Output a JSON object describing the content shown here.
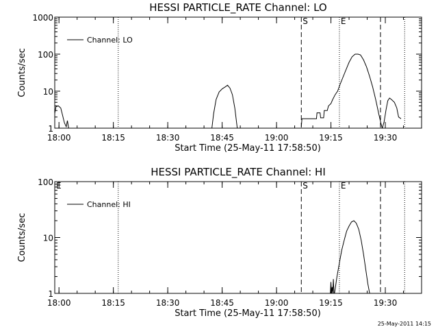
{
  "footer_timestamp": "25-May-2011 14:15",
  "chart_data": [
    {
      "type": "line",
      "title": "HESSI PARTICLE_RATE Channel: LO",
      "xlabel": "Start Time (25-May-11 17:58:50)",
      "ylabel": "Counts/sec",
      "y_scale": "log",
      "ylim": [
        1,
        1000
      ],
      "xlim": [
        "17:58:50",
        "19:40:00"
      ],
      "x_ticks": [
        "18:00",
        "18:15",
        "18:30",
        "18:45",
        "19:00",
        "19:15",
        "19:30"
      ],
      "y_ticks": [
        "1",
        "10",
        "100",
        "1000"
      ],
      "legend": {
        "label": "Channel: LO",
        "placement": "top-left"
      },
      "markers": [
        {
          "time": "18:16:20",
          "style": "dotted",
          "label": ""
        },
        {
          "time": "19:06:50",
          "style": "dashed",
          "label": "S"
        },
        {
          "time": "19:17:20",
          "style": "dotted",
          "label": "E"
        },
        {
          "time": "19:28:40",
          "style": "dashed",
          "label": ""
        },
        {
          "time": "19:35:20",
          "style": "dotted",
          "label": ""
        }
      ],
      "series": [
        {
          "name": "Channel: LO",
          "segments": [
            {
              "x": [
                "17:58:50",
                "17:59:10",
                "17:59:50",
                "18:00:30",
                "18:01:00",
                "18:01:30",
                "18:02:00",
                "18:02:20",
                "18:02:40"
              ],
              "y": [
                2.5,
                3.8,
                4.0,
                3.5,
                2.2,
                1.4,
                1.1,
                1.6,
                1.0
              ]
            },
            {
              "x": [
                "18:42:10",
                "18:42:40",
                "18:43:20",
                "18:44:10",
                "18:45:00",
                "18:45:50",
                "18:46:30",
                "18:47:10",
                "18:47:50",
                "18:48:30",
                "18:49:10"
              ],
              "y": [
                1.0,
                2.5,
                6,
                9.5,
                11.5,
                13,
                14.5,
                12,
                8,
                3.5,
                1.0
              ]
            },
            {
              "x": [
                "19:06:50",
                "19:07:00",
                "19:11:00",
                "19:11:10",
                "19:12:00",
                "19:12:10",
                "19:13:00",
                "19:13:10",
                "19:14:00",
                "19:14:20",
                "19:15:00",
                "19:15:30",
                "19:16:10",
                "19:16:50",
                "19:17:30",
                "19:18:20",
                "19:19:10",
                "19:20:00",
                "19:20:50",
                "19:21:40",
                "19:22:30",
                "19:23:10",
                "19:24:00",
                "19:24:50",
                "19:25:40",
                "19:26:30",
                "19:27:20",
                "19:28:10",
                "19:28:50",
                "19:29:10"
              ],
              "y": [
                1.1,
                1.8,
                1.8,
                2.6,
                2.6,
                1.9,
                1.9,
                3.0,
                3.0,
                4.0,
                4.6,
                6.0,
                8.0,
                10,
                15,
                24,
                38,
                60,
                85,
                100,
                100,
                95,
                70,
                45,
                25,
                13,
                6,
                2.5,
                1.3,
                1.0
              ]
            },
            {
              "x": [
                "19:29:10",
                "19:29:40",
                "19:30:10",
                "19:30:40",
                "19:31:10",
                "19:31:40",
                "19:32:30",
                "19:33:10",
                "19:33:40",
                "19:34:20"
              ],
              "y": [
                1.0,
                1.5,
                3.0,
                5.5,
                6.5,
                6.0,
                5.0,
                3.5,
                2.0,
                1.8
              ]
            }
          ]
        }
      ]
    },
    {
      "type": "line",
      "title": "HESSI PARTICLE_RATE Channel: HI",
      "xlabel": "Start Time (25-May-11 17:58:50)",
      "ylabel": "Counts/sec",
      "y_scale": "log",
      "ylim": [
        1,
        100
      ],
      "xlim": [
        "17:58:50",
        "19:40:00"
      ],
      "x_ticks": [
        "18:00",
        "18:15",
        "18:30",
        "18:45",
        "19:00",
        "19:15",
        "19:30"
      ],
      "y_ticks": [
        "1",
        "10",
        "100"
      ],
      "legend": {
        "label": "Channel: HI",
        "placement": "top-left"
      },
      "markers": [
        {
          "time": "17:58:50",
          "style": "dotted",
          "label": "E"
        },
        {
          "time": "18:16:20",
          "style": "dotted",
          "label": ""
        },
        {
          "time": "19:06:50",
          "style": "dashed",
          "label": "S"
        },
        {
          "time": "19:17:20",
          "style": "dotted",
          "label": "E"
        },
        {
          "time": "19:28:40",
          "style": "dashed",
          "label": ""
        },
        {
          "time": "19:35:20",
          "style": "dotted",
          "label": ""
        }
      ],
      "series": [
        {
          "name": "Channel: HI",
          "segments": [
            {
              "x": [
                "19:14:50",
                "19:15:00",
                "19:15:10",
                "19:15:20",
                "19:15:30",
                "19:15:40",
                "19:15:50"
              ],
              "y": [
                1.0,
                1.6,
                1.0,
                1.3,
                1.0,
                1.8,
                1.0
              ]
            },
            {
              "x": [
                "19:16:00",
                "19:16:40",
                "19:17:20",
                "19:18:00",
                "19:18:40",
                "19:19:20",
                "19:20:00",
                "19:20:40",
                "19:21:20",
                "19:22:00",
                "19:22:40",
                "19:23:20",
                "19:24:00",
                "19:24:40",
                "19:25:10",
                "19:25:40"
              ],
              "y": [
                1.0,
                2.0,
                3.5,
                6.0,
                9.0,
                13,
                16,
                19,
                20,
                18,
                14,
                9,
                5,
                2.5,
                1.5,
                1.0
              ]
            }
          ]
        }
      ]
    }
  ]
}
